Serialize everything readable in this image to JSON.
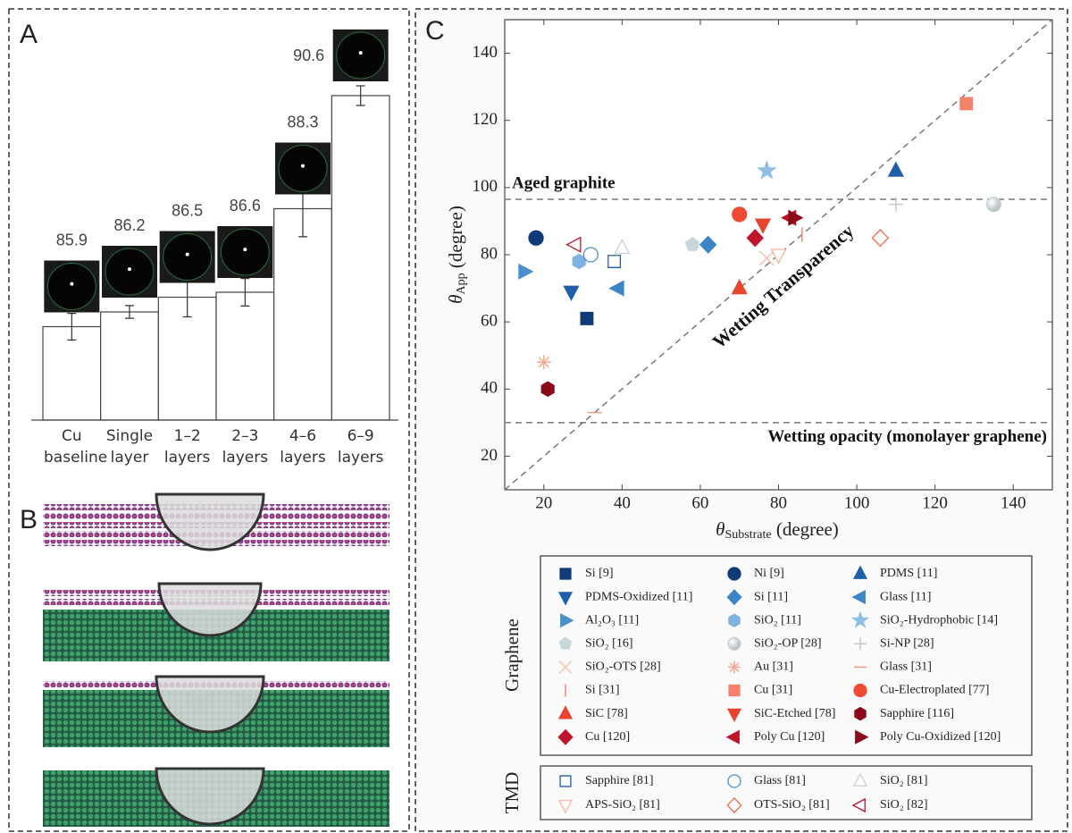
{
  "chart_data": [
    {
      "type": "bar",
      "label": "A",
      "categories": [
        "Cu baseline",
        "Single layer",
        "1–2 layers",
        "2–3 layers",
        "4–6 layers",
        "6–9 layers"
      ],
      "values": [
        85.9,
        86.2,
        86.5,
        86.6,
        88.3,
        90.6
      ],
      "errors": [
        0.27,
        0.13,
        0.4,
        0.28,
        0.57,
        0.2
      ],
      "ylim": [
        84,
        92
      ],
      "color": "#ffffff"
    },
    {
      "type": "scatter",
      "label": "C",
      "xlabel": {
        "symbol": "θ",
        "subscript": "Substrate",
        "unit": " (degree)"
      },
      "ylabel": {
        "symbol": "θ",
        "subscript": "App",
        "unit": " (degree)"
      },
      "xlim": [
        10,
        150
      ],
      "ylim": [
        10,
        150
      ],
      "xticks": [
        20,
        40,
        60,
        80,
        100,
        120,
        140
      ],
      "yticks": [
        20,
        40,
        60,
        80,
        100,
        120,
        140
      ],
      "reference_lines": [
        {
          "y": 96.5,
          "label": "Aged graphite"
        },
        {
          "y": 30,
          "label": "Wetting opacity (monolayer graphene)"
        }
      ],
      "diagonal_label": "Wetting Transparency",
      "groups": [
        {
          "name": "Graphene",
          "series": [
            {
              "name": "Si [9]",
              "marker": "square",
              "filled": true,
              "color": "#103a78",
              "x": [
                31
              ],
              "values": [
                61
              ]
            },
            {
              "name": "Ni [9]",
              "marker": "circle",
              "filled": true,
              "color": "#103a78",
              "x": [
                18
              ],
              "values": [
                85
              ]
            },
            {
              "name": "PDMS [11]",
              "marker": "triangle-up",
              "filled": true,
              "color": "#1e5fa8",
              "x": [
                110
              ],
              "values": [
                105
              ]
            },
            {
              "name": "PDMS-Oxidized  [11]",
              "marker": "triangle-down",
              "filled": true,
              "color": "#1e5fa8",
              "x": [
                27
              ],
              "values": [
                69
              ]
            },
            {
              "name": "Si [11]",
              "marker": "diamond",
              "filled": true,
              "color": "#3d85c6",
              "x": [
                62
              ],
              "values": [
                83
              ]
            },
            {
              "name": "Glass [11]",
              "marker": "triangle-left",
              "filled": true,
              "color": "#3d85c6",
              "x": [
                39
              ],
              "values": [
                70
              ]
            },
            {
              "name": "Al₂O₃ [11]",
              "marker": "triangle-right",
              "filled": true,
              "color": "#4a90cf",
              "x": [
                15
              ],
              "values": [
                75
              ]
            },
            {
              "name": "SiO₂ [11]",
              "marker": "hexagon",
              "filled": true,
              "color": "#7fb3e0",
              "x": [
                29
              ],
              "values": [
                78
              ]
            },
            {
              "name": "SiO₂-Hydrophobic [14]",
              "marker": "star",
              "filled": true,
              "color": "#8ec0e6",
              "x": [
                77
              ],
              "values": [
                105
              ]
            },
            {
              "name": "SiO₂ [16]",
              "marker": "pentagon",
              "filled": true,
              "color": "#c8d6dc",
              "x": [
                58
              ],
              "values": [
                83
              ]
            },
            {
              "name": "SiO₂-OP [28]",
              "marker": "sphere",
              "filled": true,
              "color": "#c9d2d4",
              "x": [
                135
              ],
              "values": [
                95
              ]
            },
            {
              "name": "Si-NP [28]",
              "marker": "plus",
              "filled": false,
              "color": "#c8c8c8",
              "x": [
                110
              ],
              "values": [
                95
              ]
            },
            {
              "name": "SiO₂-OTS [28]",
              "marker": "cross",
              "filled": false,
              "color": "#f8c0ae",
              "x": [
                77
              ],
              "values": [
                79
              ]
            },
            {
              "name": "Au [31]",
              "marker": "asterisk",
              "filled": false,
              "color": "#f6a88e",
              "x": [
                20
              ],
              "values": [
                48
              ]
            },
            {
              "name": "Glass [31]",
              "marker": "hline",
              "filled": false,
              "color": "#f49b80",
              "x": [
                33
              ],
              "values": [
                33
              ]
            },
            {
              "name": "Si [31]",
              "marker": "vline",
              "filled": false,
              "color": "#f08a6e",
              "x": [
                86
              ],
              "values": [
                86
              ]
            },
            {
              "name": "Cu [31]",
              "marker": "square",
              "filled": true,
              "color": "#f4826a",
              "x": [
                128
              ],
              "values": [
                125
              ]
            },
            {
              "name": "Cu-Electroplated  [77]",
              "marker": "circle",
              "filled": true,
              "color": "#ee4b32",
              "x": [
                70
              ],
              "values": [
                92
              ]
            },
            {
              "name": "SiC [78]",
              "marker": "triangle-up",
              "filled": true,
              "color": "#e8432e",
              "x": [
                70
              ],
              "values": [
                70
              ]
            },
            {
              "name": "SiC-Etched [78]",
              "marker": "triangle-down",
              "filled": true,
              "color": "#e8432e",
              "x": [
                76
              ],
              "values": [
                89
              ]
            },
            {
              "name": "Sapphire [116]",
              "marker": "hexagon",
              "filled": true,
              "color": "#8b0a1a",
              "x": [
                21
              ],
              "values": [
                40
              ]
            },
            {
              "name": "Cu [120]",
              "marker": "diamond",
              "filled": true,
              "color": "#c0142a",
              "x": [
                74
              ],
              "values": [
                85
              ]
            },
            {
              "name": "Poly Cu [120]",
              "marker": "triangle-left",
              "filled": true,
              "color": "#c0142a",
              "x": [
                83
              ],
              "values": [
                91
              ]
            },
            {
              "name": "Poly Cu-Oxidized  [120]",
              "marker": "triangle-right",
              "filled": true,
              "color": "#8b0a1a",
              "x": [
                84
              ],
              "values": [
                91
              ]
            }
          ]
        },
        {
          "name": "TMD",
          "series": [
            {
              "name": "Sapphire [81]",
              "marker": "square",
              "filled": false,
              "color": "#1e5fa8",
              "x": [
                38
              ],
              "values": [
                78
              ]
            },
            {
              "name": "Glass [81]",
              "marker": "circle",
              "filled": false,
              "color": "#4a90cf",
              "x": [
                32
              ],
              "values": [
                80
              ]
            },
            {
              "name": "SiO₂ [81]",
              "marker": "triangle-up",
              "filled": false,
              "color": "#c8d2d6",
              "x": [
                40
              ],
              "values": [
                82
              ]
            },
            {
              "name": "APS-SiO₂ [81]",
              "marker": "triangle-down",
              "filled": false,
              "color": "#f8b49a",
              "x": [
                80
              ],
              "values": [
                80
              ]
            },
            {
              "name": "OTS-SiO₂ [81]",
              "marker": "diamond",
              "filled": false,
              "color": "#ee6a4a",
              "x": [
                106
              ],
              "values": [
                85
              ]
            },
            {
              "name": "SiO₂ [82]",
              "marker": "triangle-left",
              "filled": false,
              "color": "#c0142a",
              "x": [
                28
              ],
              "values": [
                83
              ]
            }
          ]
        }
      ]
    }
  ],
  "diagram": {
    "label": "B"
  }
}
